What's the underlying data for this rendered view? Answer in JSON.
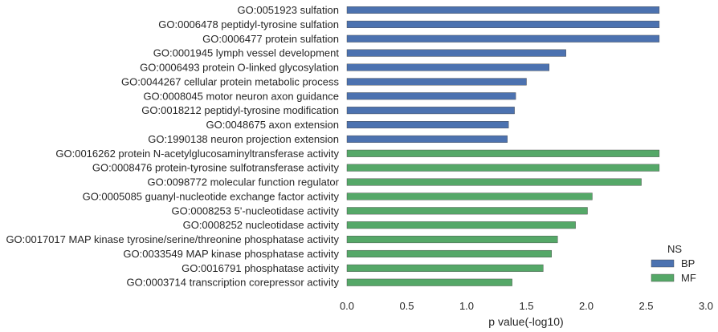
{
  "chart_data": {
    "type": "bar",
    "orientation": "horizontal",
    "xlabel": "p value(-log10)",
    "xlim": [
      0,
      3
    ],
    "xticks": [
      "0.0",
      "0.5",
      "1.0",
      "1.5",
      "2.0",
      "2.5",
      "3.0"
    ],
    "grid": false,
    "legend": {
      "title": "NS",
      "placement": "bottom-right",
      "entries": [
        {
          "name": "BP",
          "color": "#4c72b0"
        },
        {
          "name": "MF",
          "color": "#55a868"
        }
      ]
    },
    "categories": [
      "GO:0051923 sulfation",
      "GO:0006478 peptidyl-tyrosine sulfation",
      "GO:0006477 protein sulfation",
      "GO:0001945 lymph vessel development",
      "GO:0006493 protein O-linked glycosylation",
      "GO:0044267 cellular protein metabolic process",
      "GO:0008045 motor neuron axon guidance",
      "GO:0018212 peptidyl-tyrosine modification",
      "GO:0048675 axon extension",
      "GO:1990138 neuron projection extension",
      "GO:0016262 protein N-acetylglucosaminyltransferase activity",
      "GO:0008476 protein-tyrosine sulfotransferase activity",
      "GO:0098772 molecular function regulator",
      "GO:0005085 guanyl-nucleotide exchange factor activity",
      "GO:0008253 5'-nucleotidase activity",
      "GO:0008252 nucleotidase activity",
      "GO:0017017 MAP kinase tyrosine/serine/threonine phosphatase activity",
      "GO:0033549 MAP kinase phosphatase activity",
      "GO:0016791 phosphatase activity",
      "GO:0003714 transcription corepressor activity"
    ],
    "series": [
      {
        "name": "BP",
        "color": "#4c72b0",
        "values": [
          2.61,
          2.61,
          2.61,
          1.83,
          1.69,
          1.5,
          1.41,
          1.4,
          1.35,
          1.34,
          null,
          null,
          null,
          null,
          null,
          null,
          null,
          null,
          null,
          null
        ]
      },
      {
        "name": "MF",
        "color": "#55a868",
        "values": [
          null,
          null,
          null,
          null,
          null,
          null,
          null,
          null,
          null,
          null,
          2.61,
          2.61,
          2.46,
          2.05,
          2.01,
          1.91,
          1.76,
          1.71,
          1.64,
          1.38
        ]
      }
    ]
  }
}
